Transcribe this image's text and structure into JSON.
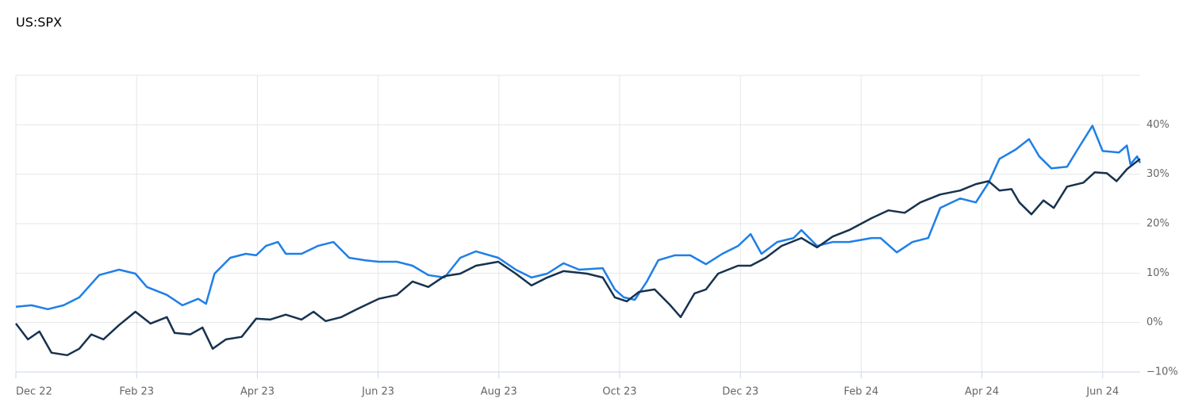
{
  "chart_data": {
    "type": "line",
    "title": "US:SPX",
    "xlim": [
      0,
      18.62
    ],
    "xticks": [
      {
        "value": 0,
        "label": "Dec 22"
      },
      {
        "value": 2,
        "label": "Feb 23"
      },
      {
        "value": 4,
        "label": "Apr 23"
      },
      {
        "value": 6,
        "label": "Jun 23"
      },
      {
        "value": 8,
        "label": "Aug 23"
      },
      {
        "value": 10,
        "label": "Oct 23"
      },
      {
        "value": 12,
        "label": "Dec 23"
      },
      {
        "value": 14,
        "label": "Feb 24"
      },
      {
        "value": 16,
        "label": "Apr 24"
      },
      {
        "value": 18,
        "label": "Jun 24"
      }
    ],
    "ylim": [
      -10,
      50
    ],
    "yticks": [
      {
        "value": -10,
        "label": "−10%"
      },
      {
        "value": 0,
        "label": "0%"
      },
      {
        "value": 10,
        "label": "10%"
      },
      {
        "value": 20,
        "label": "20%"
      },
      {
        "value": 30,
        "label": "30%"
      },
      {
        "value": 40,
        "label": "40%"
      }
    ],
    "grid": true,
    "series": [
      {
        "color": "#1f7fe8",
        "x": [
          0,
          0.26,
          0.53,
          0.79,
          1.05,
          1.38,
          1.71,
          1.98,
          2.17,
          2.5,
          2.76,
          3.02,
          3.15,
          3.29,
          3.55,
          3.81,
          3.98,
          4.14,
          4.34,
          4.47,
          4.73,
          5.0,
          5.26,
          5.52,
          5.78,
          6.01,
          6.31,
          6.57,
          6.83,
          7.1,
          7.36,
          7.62,
          7.99,
          8.28,
          8.54,
          8.8,
          9.07,
          9.33,
          9.72,
          9.92,
          10.07,
          10.25,
          10.45,
          10.64,
          10.91,
          11.17,
          11.43,
          11.7,
          11.96,
          12.17,
          12.35,
          12.61,
          12.88,
          13.01,
          13.27,
          13.53,
          13.8,
          14.17,
          14.32,
          14.59,
          14.85,
          15.11,
          15.31,
          15.64,
          15.9,
          16.11,
          16.29,
          16.56,
          16.78,
          16.95,
          17.15,
          17.41,
          17.61,
          17.83,
          18.0,
          18.27,
          18.4,
          18.46,
          18.57,
          18.62
        ],
        "values": [
          3.2,
          3.5,
          2.7,
          3.5,
          5.1,
          9.6,
          10.7,
          9.9,
          7.2,
          5.6,
          3.5,
          4.8,
          3.8,
          9.9,
          13.1,
          13.9,
          13.6,
          15.5,
          16.3,
          13.9,
          13.9,
          15.5,
          16.3,
          13.1,
          12.6,
          12.3,
          12.3,
          11.5,
          9.6,
          9.1,
          13.1,
          14.4,
          13.1,
          10.7,
          9.1,
          9.9,
          12.0,
          10.7,
          11.0,
          6.7,
          5.1,
          4.6,
          8.3,
          12.6,
          13.6,
          13.6,
          11.8,
          13.9,
          15.5,
          17.9,
          13.9,
          16.3,
          17.1,
          18.7,
          15.5,
          16.3,
          16.3,
          17.1,
          17.1,
          14.2,
          16.3,
          17.1,
          23.2,
          25.1,
          24.3,
          28.3,
          33.1,
          35.0,
          37.1,
          33.6,
          31.2,
          31.5,
          35.5,
          39.8,
          34.7,
          34.4,
          35.8,
          32.0,
          33.6,
          32.3
        ]
      },
      {
        "color": "#17324f",
        "x": [
          0,
          0.2,
          0.39,
          0.59,
          0.85,
          1.05,
          1.25,
          1.45,
          1.71,
          1.98,
          2.23,
          2.5,
          2.63,
          2.89,
          3.09,
          3.26,
          3.48,
          3.74,
          3.98,
          4.21,
          4.47,
          4.73,
          4.93,
          5.13,
          5.39,
          5.65,
          6.01,
          6.31,
          6.57,
          6.83,
          7.1,
          7.36,
          7.62,
          7.99,
          8.28,
          8.54,
          8.8,
          9.07,
          9.46,
          9.72,
          9.92,
          10.12,
          10.32,
          10.58,
          10.84,
          11.01,
          11.24,
          11.43,
          11.63,
          11.96,
          12.17,
          12.42,
          12.68,
          13.01,
          13.27,
          13.53,
          13.8,
          14.17,
          14.45,
          14.72,
          14.98,
          15.31,
          15.64,
          15.9,
          16.11,
          16.29,
          16.49,
          16.62,
          16.82,
          17.02,
          17.19,
          17.41,
          17.68,
          17.87,
          18.07,
          18.23,
          18.4,
          18.62
        ],
        "values": [
          -0.2,
          -3.4,
          -1.8,
          -6.1,
          -6.6,
          -5.3,
          -2.4,
          -3.4,
          -0.5,
          2.2,
          -0.2,
          1.1,
          -2.1,
          -2.4,
          -1.0,
          -5.3,
          -3.4,
          -2.9,
          0.8,
          0.6,
          1.6,
          0.6,
          2.2,
          0.3,
          1.1,
          2.7,
          4.8,
          5.6,
          8.3,
          7.2,
          9.4,
          9.9,
          11.5,
          12.3,
          9.9,
          7.5,
          9.1,
          10.4,
          9.9,
          9.1,
          5.1,
          4.3,
          6.2,
          6.7,
          3.5,
          1.1,
          5.9,
          6.7,
          9.9,
          11.5,
          11.5,
          13.1,
          15.5,
          17.1,
          15.2,
          17.4,
          18.7,
          21.1,
          22.7,
          22.2,
          24.3,
          25.9,
          26.7,
          28.0,
          28.6,
          26.7,
          27.0,
          24.3,
          21.9,
          24.7,
          23.2,
          27.5,
          28.3,
          30.4,
          30.2,
          28.6,
          31.0,
          33.1
        ]
      }
    ]
  }
}
